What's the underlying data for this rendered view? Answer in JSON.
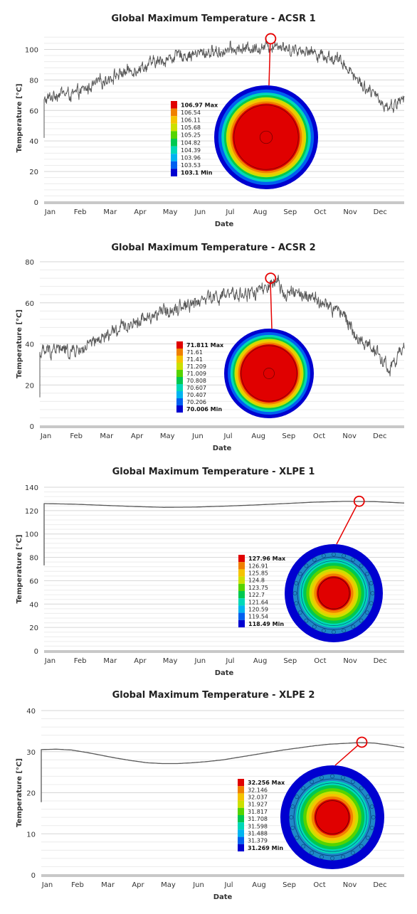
{
  "chart_data": [
    {
      "type": "line",
      "title": "Global Maximum Temperature - ACSR 1",
      "xlabel": "Date",
      "ylabel": "Temperature  [°C]",
      "ylim": [
        0,
        110
      ],
      "yticks": [
        0,
        20,
        40,
        60,
        80,
        100
      ],
      "categories": [
        "Jan",
        "Feb",
        "Mar",
        "Apr",
        "May",
        "Jun",
        "Jul",
        "Aug",
        "Sep",
        "Oct",
        "Nov",
        "Dec"
      ],
      "grid": true,
      "series": [
        {
          "x": [
            0,
            0.5,
            1,
            1.5,
            2,
            2.5,
            3,
            3.5,
            4,
            4.5,
            5,
            5.5,
            6,
            6.5,
            7,
            7.5,
            7.8,
            8,
            8.5,
            9,
            9.5,
            10,
            10.5,
            11,
            11.5,
            12
          ],
          "values": [
            66,
            72,
            70,
            75,
            80,
            84,
            87,
            90,
            93,
            96,
            97,
            98,
            99,
            100,
            101,
            102,
            104,
            101,
            100,
            98,
            95,
            91,
            79,
            70,
            62,
            68
          ],
          "noise": 8,
          "color": "#595959"
        }
      ],
      "annotation": {
        "x": 7.55,
        "y": 107,
        "color": "#e60000"
      },
      "legend": {
        "values": [
          "106.97 Max",
          "106.54",
          "106.11",
          "105.68",
          "105.25",
          "104.82",
          "104.39",
          "103.96",
          "103.53",
          "103.1 Min"
        ],
        "colors": [
          "#e00000",
          "#f08000",
          "#f5c400",
          "#cce000",
          "#55d400",
          "#00c850",
          "#00d8b8",
          "#00b4f0",
          "#0060f0",
          "#0000d0"
        ]
      },
      "cross_section": "acsr"
    },
    {
      "type": "line",
      "title": "Global Maximum Temperature - ACSR 2",
      "xlabel": "Date",
      "ylabel": "Temperature  [°C]",
      "ylim": [
        0,
        80
      ],
      "yticks": [
        0,
        20,
        40,
        60,
        80
      ],
      "categories": [
        "Jan",
        "Feb",
        "Mar",
        "Apr",
        "May",
        "Jun",
        "Jul",
        "Aug",
        "Sep",
        "Oct",
        "Nov",
        "Dec"
      ],
      "grid": true,
      "series": [
        {
          "x": [
            0,
            0.5,
            1,
            1.5,
            2,
            2.5,
            3,
            3.5,
            4,
            4.5,
            5,
            5.5,
            6,
            6.5,
            7,
            7.5,
            7.8,
            8,
            8.5,
            9,
            9.5,
            10,
            10.5,
            11,
            11.5,
            12
          ],
          "values": [
            35,
            38,
            36,
            38,
            42,
            46,
            50,
            53,
            55,
            58,
            60,
            62,
            63,
            64,
            65,
            67,
            69,
            66,
            64,
            62,
            58,
            55,
            42,
            38,
            28,
            37
          ],
          "noise": 7,
          "color": "#595959"
        }
      ],
      "annotation": {
        "x": 7.6,
        "y": 72,
        "color": "#e60000"
      },
      "legend": {
        "values": [
          "71.811 Max",
          "71.61",
          "71.41",
          "71.209",
          "71.009",
          "70.808",
          "70.607",
          "70.407",
          "70.206",
          "70.006 Min"
        ],
        "colors": [
          "#e00000",
          "#f08000",
          "#f5c400",
          "#cce000",
          "#55d400",
          "#00c850",
          "#00d8b8",
          "#00b4f0",
          "#0060f0",
          "#0000d0"
        ]
      },
      "cross_section": "acsr"
    },
    {
      "type": "line",
      "title": "Global Maximum Temperature - XLPE 1",
      "xlabel": "Date",
      "ylabel": "Temperature  [°C]",
      "ylim": [
        0,
        140
      ],
      "yticks": [
        0,
        20,
        40,
        60,
        80,
        100,
        120,
        140
      ],
      "categories": [
        "Jan",
        "Feb",
        "Mar",
        "Apr",
        "May",
        "Jun",
        "Jul",
        "Aug",
        "Sep",
        "Oct",
        "Nov",
        "Dec"
      ],
      "grid": true,
      "series": [
        {
          "x": [
            0,
            1,
            2,
            3,
            4,
            5,
            6,
            7,
            8,
            9,
            10,
            11,
            12
          ],
          "values": [
            126,
            125.5,
            124.5,
            123.5,
            122.8,
            123.0,
            123.8,
            124.8,
            126.0,
            127.2,
            127.9,
            127.7,
            126.5
          ],
          "noise": 0,
          "color": "#595959"
        }
      ],
      "annotation": {
        "x": 10.5,
        "y": 128,
        "color": "#e60000"
      },
      "legend": {
        "values": [
          "127.96 Max",
          "126.91",
          "125.85",
          "124.8",
          "123.75",
          "122.7",
          "121.64",
          "120.59",
          "119.54",
          "118.49 Min"
        ],
        "colors": [
          "#e00000",
          "#f08000",
          "#f5c400",
          "#cce000",
          "#55d400",
          "#00c850",
          "#00d8b8",
          "#00b4f0",
          "#0060f0",
          "#0000d0"
        ]
      },
      "cross_section": "xlpe"
    },
    {
      "type": "line",
      "title": "Global Maximum Temperature - XLPE 2",
      "xlabel": "Date",
      "ylabel": "Temperature  [°C]",
      "ylim": [
        0,
        40
      ],
      "yticks": [
        0,
        10,
        20,
        30,
        40
      ],
      "categories": [
        "Jan",
        "Feb",
        "Mar",
        "Apr",
        "May",
        "Jun",
        "Jul",
        "Aug",
        "Sep",
        "Oct",
        "Nov",
        "Dec"
      ],
      "grid": true,
      "series": [
        {
          "x": [
            0,
            0.5,
            1,
            1.5,
            2,
            2.5,
            3,
            3.5,
            4,
            4.5,
            5,
            5.5,
            6,
            6.5,
            7,
            7.5,
            8,
            8.5,
            9,
            9.5,
            10,
            10.5,
            11,
            11.5,
            12
          ],
          "values": [
            30.5,
            30.6,
            30.4,
            29.8,
            29.1,
            28.4,
            27.8,
            27.3,
            27.1,
            27.1,
            27.3,
            27.6,
            28.0,
            28.6,
            29.2,
            29.8,
            30.4,
            30.9,
            31.4,
            31.8,
            32.0,
            32.2,
            32.1,
            31.6,
            31.0
          ],
          "noise": 0,
          "color": "#595959"
        }
      ],
      "annotation": {
        "x": 10.6,
        "y": 32.3,
        "color": "#e60000"
      },
      "legend": {
        "values": [
          "32.256 Max",
          "32.146",
          "32.037",
          "31.927",
          "31.817",
          "31.708",
          "31.598",
          "31.488",
          "31.379",
          "31.269 Min"
        ],
        "colors": [
          "#e00000",
          "#f08000",
          "#f5c400",
          "#cce000",
          "#55d400",
          "#00c850",
          "#00d8b8",
          "#00b4f0",
          "#0060f0",
          "#0000d0"
        ]
      },
      "cross_section": "xlpe"
    }
  ]
}
